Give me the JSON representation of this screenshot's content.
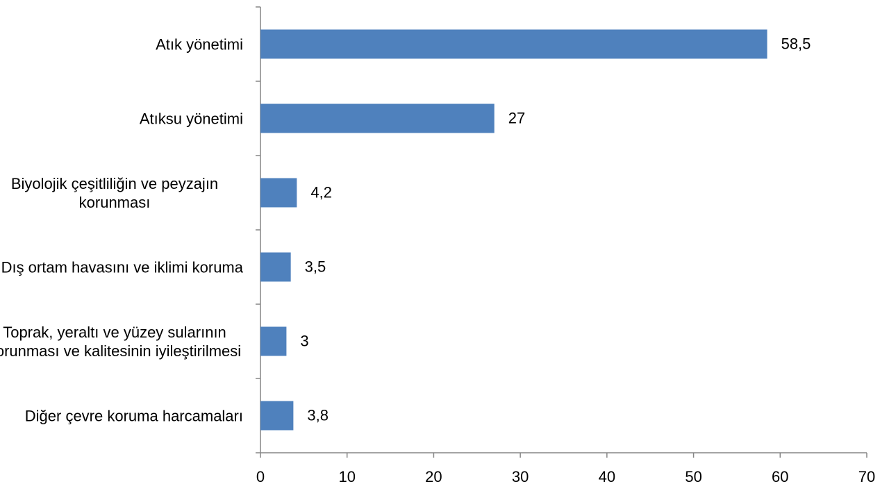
{
  "chart_data": {
    "type": "bar",
    "orientation": "horizontal",
    "categories": [
      "Atık yönetimi",
      "Atıksu yönetimi",
      "Biyolojik çeşitliliğin ve peyzajın korunması",
      "Dış ortam havasını ve iklimi koruma",
      "Toprak, yeraltı ve yüzey sularının korunması ve kalitesinin iyileştirilmesi",
      "Diğer çevre koruma harcamaları"
    ],
    "values": [
      58.5,
      27,
      4.2,
      3.5,
      3,
      3.8
    ],
    "value_labels": [
      "58,5",
      "27",
      "4,2",
      "3,5",
      "3",
      "3,8"
    ],
    "color": "#4f81bd",
    "xlim": [
      0,
      70
    ],
    "xticks": [
      0,
      10,
      20,
      30,
      40,
      50,
      60,
      70
    ]
  }
}
